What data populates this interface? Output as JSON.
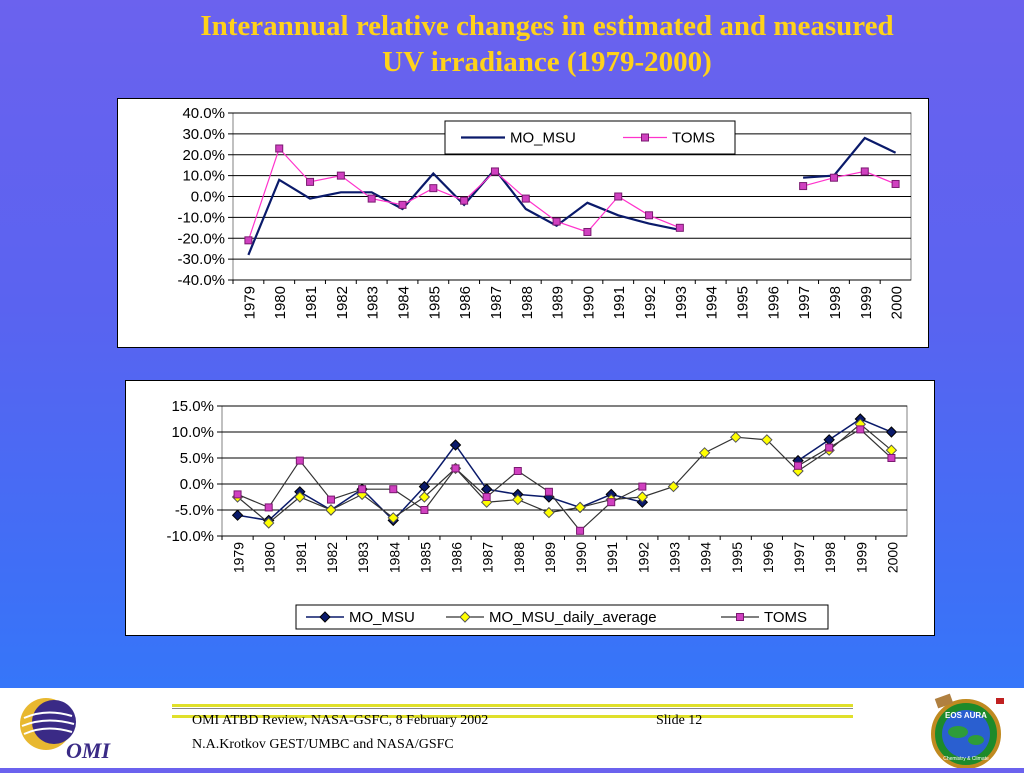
{
  "title": {
    "line1": "Interannual relative changes in estimated and measured",
    "line2": "UV irradiance (1979-2000)"
  },
  "footer": {
    "line1": "OMI ATBD Review, NASA-GSFC, 8 February 2002",
    "line2": "N.A.Krotkov GEST/UMBC and NASA/GSFC",
    "slide": "Slide 12"
  },
  "logos": {
    "left_text": "OMI",
    "right_text": "EOS AURA",
    "right_subtext": "Chemistry & Climate"
  },
  "colors": {
    "title": "#ffd21a",
    "mo_msu": "#0a1a6a",
    "toms": "#ff33cc",
    "toms_marker": "#d040c0",
    "daily_marker": "#ffff00"
  },
  "chart_data": [
    {
      "type": "line",
      "categories": [
        "1979",
        "1980",
        "1981",
        "1982",
        "1983",
        "1984",
        "1985",
        "1986",
        "1987",
        "1988",
        "1989",
        "1990",
        "1991",
        "1992",
        "1993",
        "1994",
        "1995",
        "1996",
        "1997",
        "1998",
        "1999",
        "2000"
      ],
      "series": [
        {
          "name": "MO_MSU",
          "values": [
            -28,
            8,
            -1,
            2,
            2,
            -6,
            11,
            -4,
            13,
            -6,
            -14,
            -3,
            -9,
            -13,
            -16,
            null,
            null,
            null,
            9,
            10,
            28,
            21
          ]
        },
        {
          "name": "TOMS",
          "values": [
            -21,
            23,
            7,
            10,
            -1,
            -4,
            4,
            -2,
            12,
            -1,
            -12,
            -17,
            0,
            -9,
            -15,
            null,
            null,
            null,
            5,
            9,
            12,
            6
          ]
        }
      ],
      "ylim": [
        -40,
        40
      ],
      "yticks": [
        "40.0%",
        "30.0%",
        "20.0%",
        "10.0%",
        "0.0%",
        "-10.0%",
        "-20.0%",
        "-30.0%",
        "-40.0%"
      ],
      "grid": true,
      "legend": "top-center"
    },
    {
      "type": "line",
      "categories": [
        "1979",
        "1980",
        "1981",
        "1982",
        "1983",
        "1984",
        "1985",
        "1986",
        "1987",
        "1988",
        "1989",
        "1990",
        "1991",
        "1992",
        "1993",
        "1994",
        "1995",
        "1996",
        "1997",
        "1998",
        "1999",
        "2000"
      ],
      "series": [
        {
          "name": "MO_MSU",
          "values": [
            -6,
            -7,
            -1.5,
            -5,
            -1,
            -7,
            -0.5,
            7.5,
            -1,
            -2,
            -2.5,
            -4.5,
            -2,
            -3.5,
            null,
            null,
            null,
            null,
            4.5,
            8.5,
            12.5,
            10
          ]
        },
        {
          "name": "MO_MSU_daily_average",
          "values": [
            -2.5,
            -7.5,
            -2.5,
            -5,
            -2,
            -6.5,
            -2.5,
            3,
            -3.5,
            -3,
            -5.5,
            -4.5,
            -3,
            -2.5,
            -0.5,
            6,
            9,
            8.5,
            2.5,
            6.5,
            11.5,
            6.5
          ]
        },
        {
          "name": "TOMS",
          "values": [
            -2,
            -4.5,
            4.5,
            -3,
            -1,
            -1,
            -5,
            3,
            -2.5,
            2.5,
            -1.5,
            -9,
            -3.5,
            -0.5,
            null,
            null,
            null,
            null,
            3.5,
            7,
            10.5,
            5
          ]
        }
      ],
      "ylim": [
        -10,
        15
      ],
      "yticks": [
        "15.0%",
        "10.0%",
        "5.0%",
        "0.0%",
        "-5.0%",
        "-10.0%"
      ],
      "grid": true,
      "legend": "bottom-center"
    }
  ]
}
